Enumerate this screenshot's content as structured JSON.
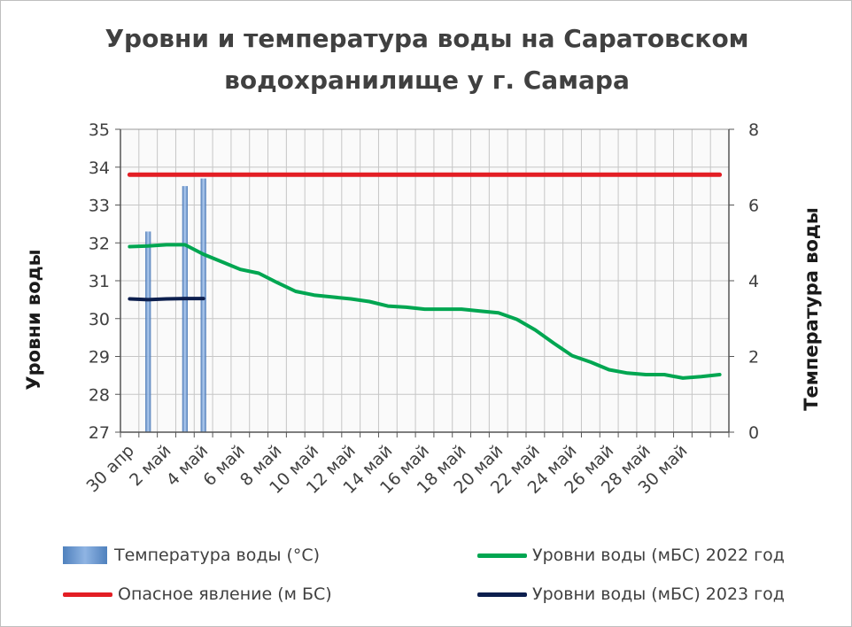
{
  "chart_data": {
    "type": "line",
    "title": "Уровни и температура воды на Саратовском водохранилище у г. Самара",
    "title_lines": [
      "Уровни и температура  воды на Саратовском",
      "водохранилище у  г. Самара"
    ],
    "ylabel": "Уровни воды",
    "y2label": "Температура воды",
    "ylim": [
      27,
      35
    ],
    "y2lim": [
      0,
      8
    ],
    "y_ticks": [
      "27",
      "28",
      "29",
      "30",
      "31",
      "32",
      "33",
      "34",
      "35"
    ],
    "y2_ticks": [
      "0",
      "2",
      "4",
      "6",
      "8"
    ],
    "y2_tick_values": [
      0,
      2,
      4,
      6,
      8
    ],
    "x_tick_labels": [
      "30 апр",
      "2 май",
      "4 май",
      "6 май",
      "8 май",
      "10 май",
      "12 май",
      "14 май",
      "16 май",
      "18 май",
      "20 май",
      "22 май",
      "24 май",
      "26 май",
      "28 май",
      "30 май"
    ],
    "grid": true,
    "legend_position": "bottom",
    "series": [
      {
        "name": "Температура воды (°C)",
        "kind": "bar",
        "axis": "y2",
        "color": "#4f81bd",
        "x": [
          1,
          3,
          4
        ],
        "values": [
          5.3,
          6.5,
          6.7
        ]
      },
      {
        "name": "Уровни воды (мБС) 2022 год",
        "kind": "line",
        "axis": "y",
        "color": "#00a651",
        "x": [
          0,
          1,
          2,
          3,
          4,
          5,
          6,
          7,
          8,
          9,
          10,
          11,
          12,
          13,
          14,
          15,
          16,
          17,
          18,
          19,
          20,
          21,
          22,
          23,
          24,
          25,
          26,
          27,
          28,
          29,
          30,
          31,
          32
        ],
        "values": [
          31.9,
          31.92,
          31.95,
          31.95,
          31.7,
          31.5,
          31.3,
          31.2,
          30.95,
          30.72,
          30.62,
          30.57,
          30.52,
          30.45,
          30.33,
          30.3,
          30.25,
          30.25,
          30.25,
          30.2,
          30.15,
          29.98,
          29.7,
          29.35,
          29.02,
          28.85,
          28.65,
          28.56,
          28.52,
          28.52,
          28.43,
          28.47,
          28.52
        ]
      },
      {
        "name": "Опасное явление   (м БС)",
        "kind": "line",
        "axis": "y",
        "color": "#e31e24",
        "x": [
          0,
          32
        ],
        "values": [
          33.8,
          33.8
        ]
      },
      {
        "name": "Уровни воды (мБС) 2023 год",
        "kind": "line",
        "axis": "y",
        "color": "#0d1f4e",
        "x": [
          0,
          1,
          2,
          3,
          4
        ],
        "values": [
          30.52,
          30.5,
          30.52,
          30.53,
          30.53
        ]
      }
    ]
  }
}
